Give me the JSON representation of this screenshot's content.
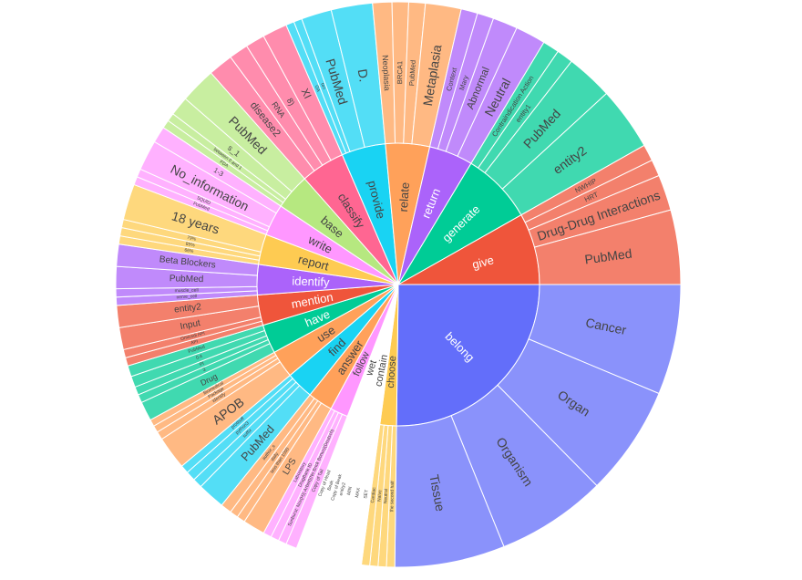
{
  "chart_data": {
    "type": "sunburst",
    "title": "",
    "children": [
      {
        "name": "belong",
        "value": 16,
        "color": "#636efa",
        "children": [
          {
            "name": "Cancer",
            "value": 4
          },
          {
            "name": "Organ",
            "value": 4
          },
          {
            "name": "Organism",
            "value": 4
          },
          {
            "name": "Tissue",
            "value": 4
          }
        ]
      },
      {
        "name": "choose",
        "value": 1.2,
        "color": "#fecb52",
        "children": [
          {
            "name": "the second half",
            "value": 0.3
          },
          {
            "name": "Neutral",
            "value": 0.3
          },
          {
            "name": "Naive",
            "value": 0.3
          },
          {
            "name": "Cardiac",
            "value": 0.3
          }
        ]
      },
      {
        "name": "contain",
        "value": 1.2,
        "color": "#ffffff",
        "children": [
          {
            "name": "SET",
            "value": 0.4
          },
          {
            "name": "MAX",
            "value": 0.4
          },
          {
            "name": "MIN",
            "value": 0.4
          }
        ]
      },
      {
        "name": "wet",
        "value": 1.2,
        "color": "#ffffff",
        "children": [
          {
            "name": "entity2",
            "value": 0.3
          },
          {
            "name": "Copy of Beak",
            "value": 0.3
          },
          {
            "name": "Beak",
            "value": 0.3
          },
          {
            "name": "Copy of Head",
            "value": 0.3
          }
        ]
      },
      {
        "name": "follow",
        "value": 1.3,
        "color": "#ff97ff",
        "children": [
          {
            "name": "Copy of Tail",
            "value": 0.4
          },
          {
            "name": "Sunburst: Nox(H)(-Arbeit)(No Brick Bonus)(Deutsch)",
            "value": 0.3
          },
          {
            "name": "DrugBank ID",
            "value": 0.3
          },
          {
            "name": "Laboratory",
            "value": 0.3
          }
        ]
      },
      {
        "name": "answer",
        "value": 1.8,
        "color": "#ffa15a",
        "children": [
          {
            "name": "LPS",
            "value": 0.8
          },
          {
            "name": "less than 1000",
            "value": 0.3
          },
          {
            "name": "daily",
            "value": 0.3
          },
          {
            "name": "author_s",
            "value": 0.4
          }
        ]
      },
      {
        "name": "find",
        "value": 2.0,
        "color": "#19d3f3",
        "children": [
          {
            "name": "PubMed",
            "value": 1.0
          },
          {
            "name": "suffix",
            "value": 0.35
          },
          {
            "name": "python3",
            "value": 0.35
          },
          {
            "name": "protbuff",
            "value": 0.3
          }
        ]
      },
      {
        "name": "use",
        "value": 2.0,
        "color": "#ffa15a",
        "children": [
          {
            "name": "APOB",
            "value": 1.2
          },
          {
            "name": "identify",
            "value": 0.3
          },
          {
            "name": "Package",
            "value": 0.25
          },
          {
            "name": "Biomedical",
            "value": 0.25
          }
        ]
      },
      {
        "name": "have",
        "value": 2.1,
        "color": "#00cc96",
        "children": [
          {
            "name": "Drug",
            "value": 0.7
          },
          {
            "name": "3",
            "value": 0.3
          },
          {
            "name": "PI",
            "value": 0.3
          },
          {
            "name": "0.4",
            "value": 0.4
          },
          {
            "name": "PubMed",
            "value": 0.4
          }
        ]
      },
      {
        "name": "mention",
        "value": 2.2,
        "color": "#ef553b",
        "children": [
          {
            "name": "API",
            "value": 0.3
          },
          {
            "name": "Omicsdi API",
            "value": 0.3
          },
          {
            "name": "Input",
            "value": 0.8
          },
          {
            "name": "entity2",
            "value": 0.8
          }
        ]
      },
      {
        "name": "identify",
        "value": 2.2,
        "color": "#ab63fa",
        "children": [
          {
            "name": "nerve_cell",
            "value": 0.3
          },
          {
            "name": "muscle_cell",
            "value": 0.3
          },
          {
            "name": "PubMed",
            "value": 0.8
          },
          {
            "name": "Beta Blockers",
            "value": 0.8
          }
        ]
      },
      {
        "name": "report",
        "value": 2.2,
        "color": "#fecb52",
        "children": [
          {
            "name": "66%",
            "value": 0.3
          },
          {
            "name": "85%",
            "value": 0.3
          },
          {
            "name": "79%",
            "value": 0.3
          },
          {
            "name": "18 years",
            "value": 1.3
          }
        ]
      },
      {
        "name": "write",
        "value": 2.3,
        "color": "#ff97ff",
        "children": [
          {
            "name": "PubMed",
            "value": 0.3
          },
          {
            "name": "SQUID",
            "value": 0.3
          },
          {
            "name": "No_information",
            "value": 1.1
          },
          {
            "name": "1-3",
            "value": 0.6
          }
        ]
      },
      {
        "name": "base",
        "value": 2.6,
        "color": "#b6e880",
        "children": [
          {
            "name": "FDA",
            "value": 0.3
          },
          {
            "name": "between 0 and 1",
            "value": 0.3
          },
          {
            "name": "s_1",
            "value": 0.7
          },
          {
            "name": "PubMed",
            "value": 1.3
          }
        ]
      },
      {
        "name": "classify",
        "value": 3.2,
        "color": "#ff6692",
        "children": [
          {
            "name": "disease2",
            "value": 0.9
          },
          {
            "name": "RNA",
            "value": 0.7
          },
          {
            "name": "8)",
            "value": 0.7
          },
          {
            "name": "XI",
            "value": 0.9
          }
        ]
      },
      {
        "name": "provide",
        "value": 3.2,
        "color": "#19d3f3",
        "children": [
          {
            "name": "OA",
            "value": 0.3
          },
          {
            "name": "ten",
            "value": 0.3
          },
          {
            "name": "PubMed",
            "value": 1.1
          },
          {
            "name": "D.",
            "value": 1.5
          }
        ]
      },
      {
        "name": "relate",
        "value": 3.2,
        "color": "#ffa15a",
        "children": [
          {
            "name": "Neoplasia",
            "value": 0.7
          },
          {
            "name": "BRCA1",
            "value": 0.6
          },
          {
            "name": "PubMed",
            "value": 0.6
          },
          {
            "name": "Metaplasia",
            "value": 1.3
          }
        ]
      },
      {
        "name": "return",
        "value": 3.2,
        "color": "#ab63fa",
        "children": [
          {
            "name": "Context",
            "value": 0.6
          },
          {
            "name": "Mary",
            "value": 0.6
          },
          {
            "name": "Abnormal",
            "value": 0.9
          },
          {
            "name": "Neutral",
            "value": 1.1
          }
        ]
      },
      {
        "name": "generate",
        "value": 5.2,
        "color": "#00cc96",
        "children": [
          {
            "name": "Contraindication Action",
            "value": 0.6
          },
          {
            "name": "entity1",
            "value": 0.6
          },
          {
            "name": "PubMed",
            "value": 1.7
          },
          {
            "name": "entity2",
            "value": 2.3
          }
        ]
      },
      {
        "name": "give",
        "value": 5.2,
        "color": "#ef553b",
        "children": [
          {
            "name": "NWHIP",
            "value": 0.6
          },
          {
            "name": "HRT",
            "value": 0.6
          },
          {
            "name": "Drug-Drug Interactions",
            "value": 1.3
          },
          {
            "name": "PubMed",
            "value": 2.7
          }
        ]
      }
    ]
  }
}
